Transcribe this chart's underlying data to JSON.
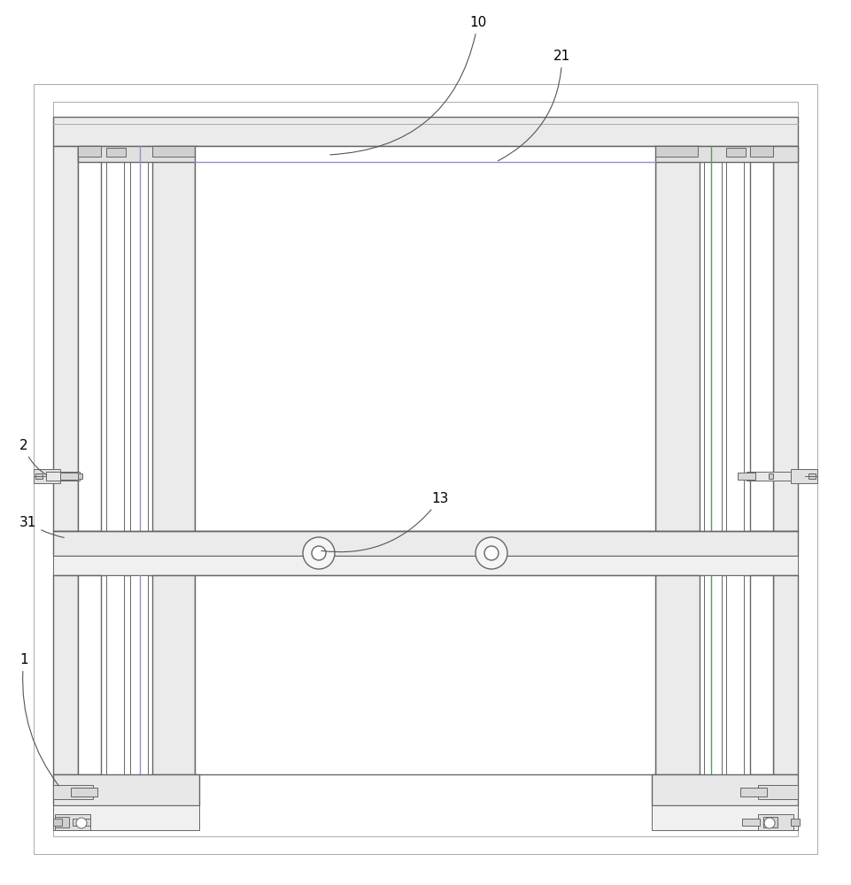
{
  "bg_color": "#ffffff",
  "lc": "#aaaaaa",
  "dc": "#666666",
  "gc": "#5a9a5a",
  "pc": "#9090cc",
  "fig_width": 9.61,
  "fig_height": 10.0
}
